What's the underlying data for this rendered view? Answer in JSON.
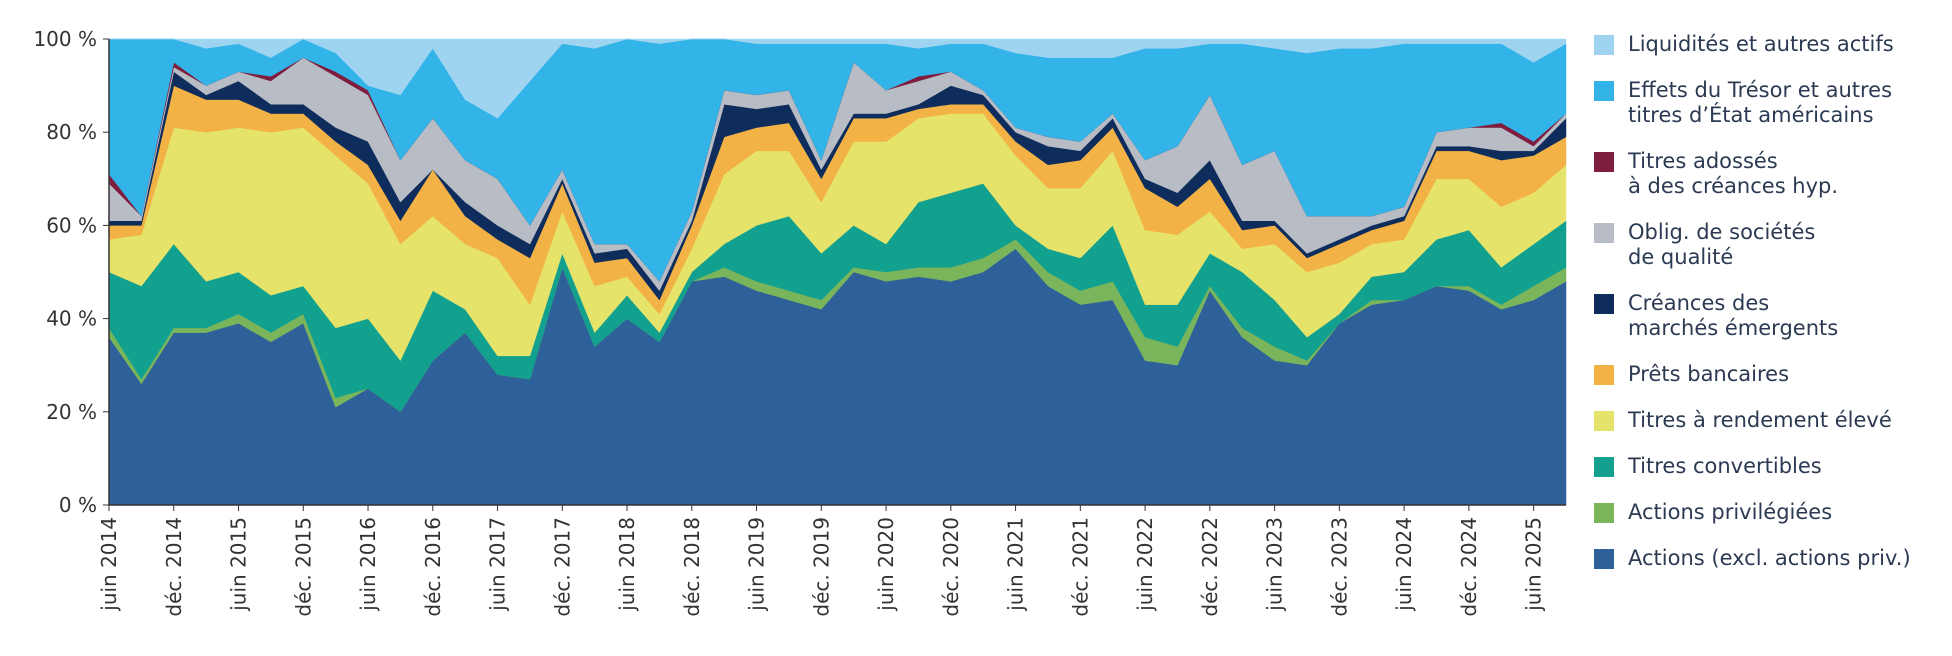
{
  "chart_data": {
    "type": "stacked_area",
    "categories": [
      "juin 2014",
      null,
      "déc. 2014",
      null,
      "juin 2015",
      null,
      "déc. 2015",
      null,
      "juin 2016",
      null,
      "déc. 2016",
      null,
      "juin 2017",
      null,
      "déc. 2017",
      null,
      "juin 2018",
      null,
      "déc. 2018",
      null,
      "juin 2019",
      null,
      "déc. 2019",
      null,
      "juin 2020",
      null,
      "déc. 2020",
      null,
      "juin 2021",
      null,
      "déc. 2021",
      null,
      "juin 2022",
      null,
      "déc. 2022",
      null,
      "juin 2023",
      null,
      "déc. 2023",
      null,
      "juin 2024",
      null,
      "déc. 2024",
      null,
      "juin 2025",
      null
    ],
    "ylim": [
      0,
      100
    ],
    "yticks": [
      {
        "value": 0,
        "label": "0 %"
      },
      {
        "value": 20,
        "label": "20 %"
      },
      {
        "value": 40,
        "label": "40 %"
      },
      {
        "value": 60,
        "label": "60 %"
      },
      {
        "value": 80,
        "label": "80 %"
      },
      {
        "value": 100,
        "label": "100 %"
      }
    ],
    "grid": false,
    "legend": "right",
    "series": [
      {
        "name": "Actions (excl. actions priv.)",
        "color": "#2e6099",
        "values": [
          36,
          26,
          37,
          37,
          39,
          35,
          39,
          21,
          25,
          20,
          31,
          37,
          28,
          27,
          51,
          34,
          40,
          35,
          48,
          49,
          46,
          44,
          42,
          50,
          48,
          49,
          48,
          50,
          55,
          47,
          43,
          44,
          31,
          30,
          46,
          36,
          31,
          30,
          39,
          43,
          44,
          47,
          46,
          42,
          44,
          48
        ]
      },
      {
        "name": "Actions privilégiées",
        "color": "#7ab55c",
        "values": [
          2,
          1,
          1,
          1,
          2,
          2,
          2,
          2,
          0,
          0,
          0,
          0,
          0,
          0,
          0,
          0,
          0,
          0,
          0,
          2,
          2,
          2,
          2,
          1,
          2,
          2,
          3,
          3,
          2,
          3,
          3,
          4,
          5,
          4,
          1,
          2,
          3,
          1,
          0,
          1,
          0,
          0,
          1,
          1,
          3,
          3
        ]
      },
      {
        "name": "Titres convertibles",
        "color": "#12a08f",
        "values": [
          12,
          20,
          18,
          10,
          9,
          8,
          6,
          15,
          15,
          11,
          15,
          5,
          4,
          5,
          3,
          3,
          5,
          2,
          2,
          5,
          12,
          16,
          10,
          9,
          6,
          14,
          16,
          16,
          3,
          5,
          7,
          12,
          7,
          9,
          7,
          12,
          10,
          5,
          2,
          5,
          6,
          10,
          12,
          8,
          9,
          10
        ]
      },
      {
        "name": "Titres à rendement élevé",
        "color": "#e5e36a",
        "values": [
          7,
          11,
          25,
          32,
          31,
          35,
          34,
          37,
          29,
          25,
          16,
          14,
          21,
          11,
          9,
          10,
          4,
          4,
          5,
          15,
          16,
          14,
          11,
          18,
          22,
          18,
          17,
          15,
          15,
          13,
          15,
          16,
          16,
          15,
          9,
          5,
          12,
          14,
          11,
          7,
          7,
          13,
          11,
          13,
          11,
          12
        ]
      },
      {
        "name": "Prêts bancaires",
        "color": "#f2b245",
        "values": [
          3,
          2,
          9,
          7,
          6,
          4,
          3,
          3,
          4,
          5,
          10,
          6,
          4,
          10,
          6,
          5,
          4,
          3,
          5,
          8,
          5,
          6,
          5,
          5,
          5,
          2,
          2,
          2,
          3,
          5,
          6,
          5,
          9,
          6,
          7,
          4,
          4,
          3,
          4,
          3,
          4,
          6,
          6,
          10,
          8,
          6
        ]
      },
      {
        "name": "Créances des\nmarchés émergents",
        "color": "#0e2d5c",
        "values": [
          1,
          1,
          3,
          1,
          4,
          2,
          2,
          3,
          5,
          4,
          0,
          3,
          3,
          3,
          1,
          2,
          2,
          2,
          1,
          7,
          4,
          4,
          2,
          1,
          1,
          1,
          4,
          2,
          2,
          4,
          2,
          2,
          2,
          3,
          4,
          2,
          1,
          1,
          1,
          1,
          1,
          1,
          1,
          2,
          1,
          4
        ]
      },
      {
        "name": "Oblig. de sociétés\nde qualité",
        "color": "#b8bcc4",
        "values": [
          8,
          1,
          1,
          2,
          2,
          5,
          10,
          11,
          10,
          9,
          11,
          9,
          10,
          4,
          2,
          2,
          1,
          2,
          2,
          3,
          3,
          3,
          2,
          11,
          5,
          5,
          3,
          1,
          1,
          2,
          2,
          1,
          4,
          10,
          14,
          12,
          15,
          8,
          5,
          2,
          2,
          3,
          4,
          5,
          1,
          1
        ]
      },
      {
        "name": "Titres adossés\nà des créances hyp.",
        "color": "#7f1d3f",
        "values": [
          2,
          0,
          1,
          0,
          0,
          1,
          0,
          1,
          1,
          0,
          0,
          0,
          0,
          0,
          0,
          0,
          0,
          0,
          0,
          0,
          0,
          0,
          0,
          0,
          0,
          1,
          0,
          0,
          0,
          0,
          0,
          0,
          0,
          0,
          0,
          0,
          0,
          0,
          0,
          0,
          0,
          0,
          0,
          1,
          1,
          0
        ]
      },
      {
        "name": "Effets du Trésor et autres\ntitres d’État américains",
        "color": "#33b4e8",
        "values": [
          29,
          38,
          5,
          8,
          6,
          4,
          4,
          4,
          1,
          14,
          15,
          13,
          13,
          31,
          27,
          42,
          44,
          51,
          37,
          11,
          11,
          10,
          25,
          4,
          10,
          6,
          6,
          10,
          16,
          17,
          18,
          12,
          24,
          21,
          11,
          26,
          22,
          35,
          36,
          36,
          35,
          19,
          18,
          17,
          17,
          15
        ]
      },
      {
        "name": "Liquidités et autres actifs",
        "color": "#9fd4f0",
        "values": [
          0,
          0,
          0,
          2,
          1,
          4,
          0,
          3,
          10,
          12,
          2,
          13,
          17,
          9,
          1,
          2,
          0,
          1,
          0,
          0,
          1,
          1,
          1,
          1,
          1,
          2,
          1,
          1,
          3,
          4,
          4,
          4,
          2,
          2,
          1,
          1,
          2,
          3,
          2,
          2,
          1,
          1,
          1,
          1,
          5,
          1
        ]
      }
    ]
  }
}
